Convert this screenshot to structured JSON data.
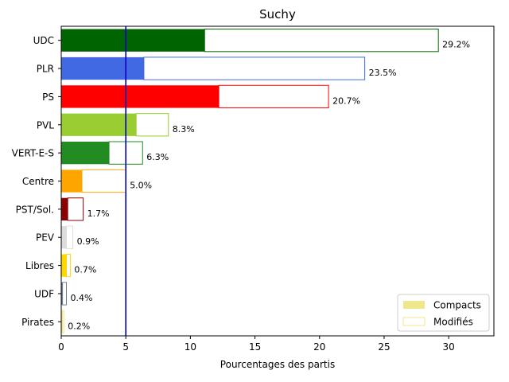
{
  "chart_data": {
    "type": "bar",
    "orientation": "horizontal",
    "title": "Suchy",
    "xlabel": "Pourcentages des partis",
    "ylabel": "",
    "xlim": [
      0,
      33.5
    ],
    "xticks": [
      0,
      5,
      10,
      15,
      20,
      25,
      30
    ],
    "reference_line": {
      "x": 5,
      "color": "#0000cc"
    },
    "categories": [
      "UDC",
      "PLR",
      "PS",
      "PVL",
      "VERT-E-S",
      "Centre",
      "PST/Sol.",
      "PEV",
      "Libres",
      "UDF",
      "Pirates"
    ],
    "series": [
      {
        "name": "Compacts",
        "values": [
          11.1,
          6.4,
          12.2,
          5.8,
          3.7,
          1.6,
          0.5,
          0.4,
          0.4,
          0.1,
          0.1
        ]
      },
      {
        "name": "Modifiés",
        "values": [
          18.1,
          17.1,
          8.5,
          2.5,
          2.6,
          3.4,
          1.2,
          0.5,
          0.3,
          0.3,
          0.1
        ]
      }
    ],
    "totals": [
      29.2,
      23.5,
      20.7,
      8.3,
      6.3,
      5.0,
      1.7,
      0.9,
      0.7,
      0.4,
      0.2
    ],
    "value_labels": [
      "29.2%",
      "23.5%",
      "20.7%",
      "8.3%",
      "6.3%",
      "5.0%",
      "1.7%",
      "0.9%",
      "0.7%",
      "0.4%",
      "0.2%"
    ],
    "colors": [
      "#006400",
      "#4169e1",
      "#ff0000",
      "#9acd32",
      "#228b22",
      "#ffa500",
      "#8b0000",
      "#dcdcdc",
      "#ffd700",
      "#708090",
      "#f0e68c"
    ],
    "legend": {
      "placement": "lower-right",
      "entries": [
        {
          "label": "Compacts",
          "style": "filled",
          "color": "#f0e68c"
        },
        {
          "label": "Modifiés",
          "style": "outline",
          "color": "#f0e68c"
        }
      ]
    },
    "grid": false
  }
}
